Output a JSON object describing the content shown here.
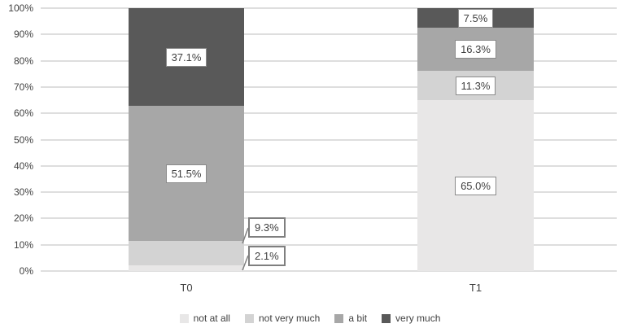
{
  "chart_data": {
    "type": "bar",
    "subtype": "stacked-100-column",
    "title": "",
    "xlabel": "",
    "ylabel": "",
    "categories": [
      "T0",
      "T1"
    ],
    "series": [
      {
        "name": "not at all",
        "color": "#e8e7e7",
        "values": [
          2.1,
          65.0
        ],
        "labels": [
          "2.1%",
          "65.0%"
        ]
      },
      {
        "name": "not very much",
        "color": "#d3d3d3",
        "values": [
          9.3,
          11.3
        ],
        "labels": [
          "9.3%",
          "11.3%"
        ]
      },
      {
        "name": "a bit",
        "color": "#a7a7a7",
        "values": [
          51.5,
          16.3
        ],
        "labels": [
          "51.5%",
          "16.3%"
        ]
      },
      {
        "name": "very much",
        "color": "#595959",
        "values": [
          37.1,
          7.5
        ],
        "labels": [
          "37.1%",
          "7.5%"
        ]
      }
    ],
    "y_axis": {
      "min": 0,
      "max": 100,
      "tick_step": 10,
      "ticks": [
        "0%",
        "10%",
        "20%",
        "30%",
        "40%",
        "50%",
        "60%",
        "70%",
        "80%",
        "90%",
        "100%"
      ]
    },
    "gridlines": true,
    "legend": {
      "position": "bottom",
      "entries": [
        "not at all",
        "not very much",
        "a bit",
        "very much"
      ]
    },
    "callout_labels": [
      {
        "category": "T0",
        "series": "not very much",
        "text": "9.3%"
      },
      {
        "category": "T0",
        "series": "not at all",
        "text": "2.1%"
      }
    ]
  },
  "colors": {
    "background": "#ffffff",
    "gridline": "#dedede",
    "text": "#3f3f3f",
    "label_box_bg": "#ffffff",
    "label_box_border": "#8a8a8a",
    "callout_border": "#7f7f7f",
    "leader_line": "#7f7f7f"
  }
}
